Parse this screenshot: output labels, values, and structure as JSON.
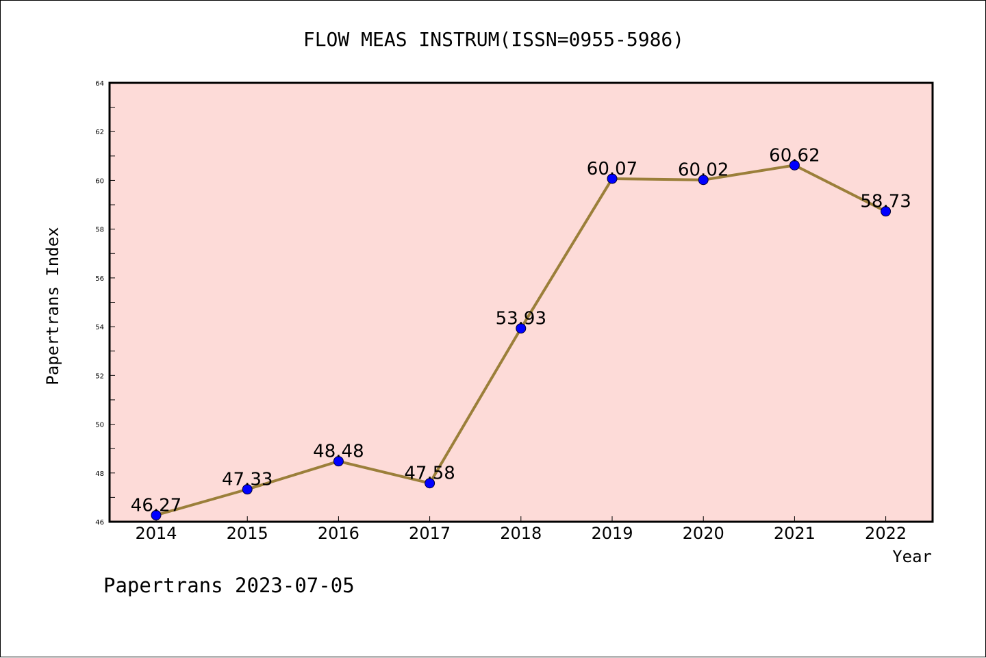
{
  "chart_data": {
    "type": "line",
    "title": "FLOW MEAS INSTRUM(ISSN=0955-5986)",
    "xlabel": "Year",
    "ylabel": "Papertrans Index",
    "footer": "Papertrans 2023-07-05",
    "categories": [
      "2014",
      "2015",
      "2016",
      "2017",
      "2018",
      "2019",
      "2020",
      "2021",
      "2022"
    ],
    "values": [
      46.27,
      47.33,
      48.48,
      47.58,
      53.93,
      60.07,
      60.02,
      60.62,
      58.73
    ],
    "value_labels": [
      "46.27",
      "47.33",
      "48.48",
      "47.58",
      "53.93",
      "60.07",
      "60.02",
      "60.62",
      "58.73"
    ],
    "ylim": [
      46,
      64
    ],
    "y_ticks": [
      "46",
      "48",
      "50",
      "52",
      "54",
      "56",
      "58",
      "60",
      "62",
      "64"
    ],
    "grid": false,
    "legend": "none",
    "colors": {
      "plot_background": "#fddbd8",
      "line": "#9b7f3a",
      "marker": "#0000ff",
      "axis": "#000000"
    }
  }
}
